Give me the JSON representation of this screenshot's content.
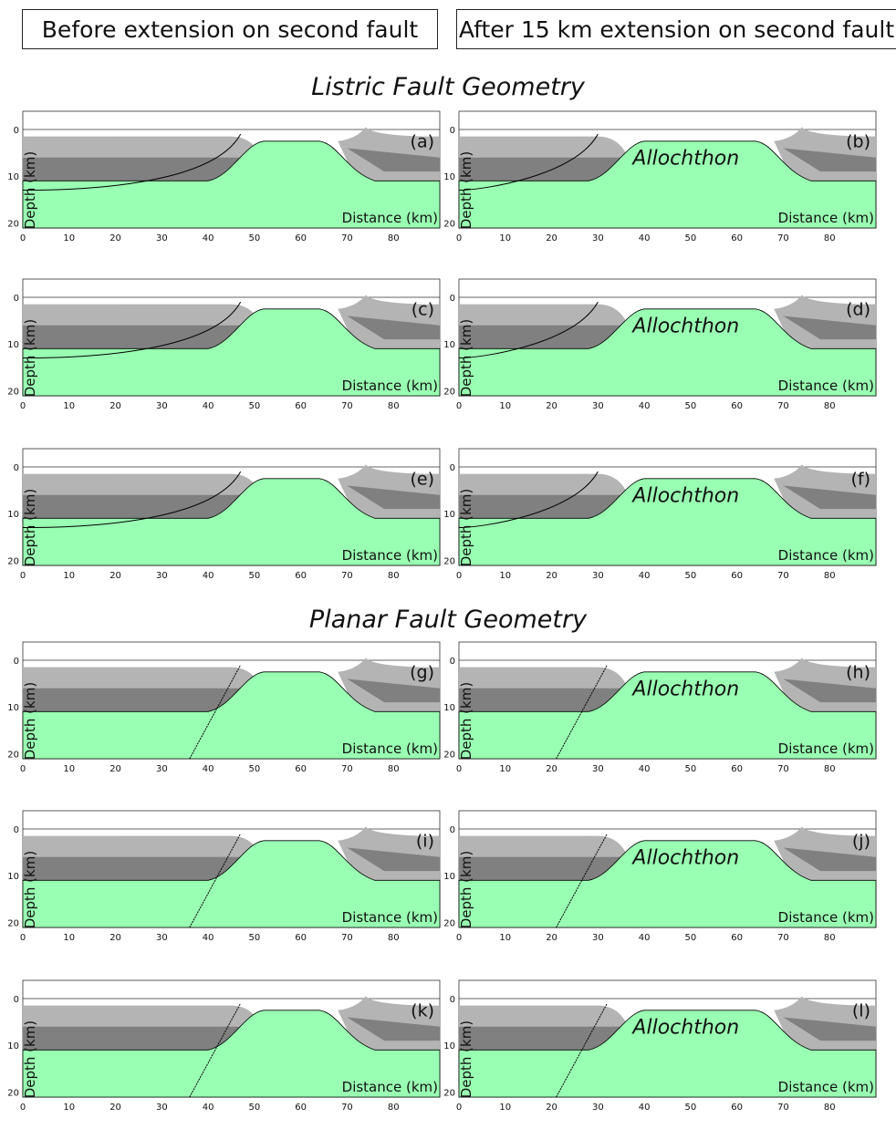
{
  "headers": {
    "before": "Before extension on second fault",
    "after": "After 15 km extension on second fault"
  },
  "sections": {
    "listric": "Listric Fault Geometry",
    "planar": "Planar Fault Geometry"
  },
  "axes": {
    "depth_label": "Depth (km)",
    "distance_label": "Distance (km)",
    "x_ticks": [
      "0",
      "10",
      "20",
      "30",
      "40",
      "50",
      "60",
      "70",
      "80"
    ],
    "y_ticks": [
      "0",
      "10",
      "20"
    ]
  },
  "allochthon_label": "Allochthon",
  "colors": {
    "upper_crust": "#b4b4b4",
    "mid_crust": "#808080",
    "mantle": "#99ffb2",
    "fault_line": "#000000"
  },
  "panels": [
    {
      "id": "a",
      "label": "(a)",
      "row": 0,
      "col": 0,
      "geometry": "listric",
      "allochthon": false
    },
    {
      "id": "b",
      "label": "(b)",
      "row": 0,
      "col": 1,
      "geometry": "listric",
      "allochthon": true
    },
    {
      "id": "c",
      "label": "(c)",
      "row": 1,
      "col": 0,
      "geometry": "listric",
      "allochthon": false
    },
    {
      "id": "d",
      "label": "(d)",
      "row": 1,
      "col": 1,
      "geometry": "listric",
      "allochthon": true
    },
    {
      "id": "e",
      "label": "(e)",
      "row": 2,
      "col": 0,
      "geometry": "listric",
      "allochthon": false
    },
    {
      "id": "f",
      "label": "(f)",
      "row": 2,
      "col": 1,
      "geometry": "listric",
      "allochthon": true
    },
    {
      "id": "g",
      "label": "(g)",
      "row": 3,
      "col": 0,
      "geometry": "planar",
      "allochthon": false
    },
    {
      "id": "h",
      "label": "(h)",
      "row": 3,
      "col": 1,
      "geometry": "planar",
      "allochthon": true
    },
    {
      "id": "i",
      "label": "(i)",
      "row": 4,
      "col": 0,
      "geometry": "planar",
      "allochthon": false
    },
    {
      "id": "j",
      "label": "(j)",
      "row": 4,
      "col": 1,
      "geometry": "planar",
      "allochthon": true
    },
    {
      "id": "k",
      "label": "(k)",
      "row": 5,
      "col": 0,
      "geometry": "planar",
      "allochthon": false
    },
    {
      "id": "l",
      "label": "(l)",
      "row": 5,
      "col": 1,
      "geometry": "planar",
      "allochthon": true
    }
  ]
}
